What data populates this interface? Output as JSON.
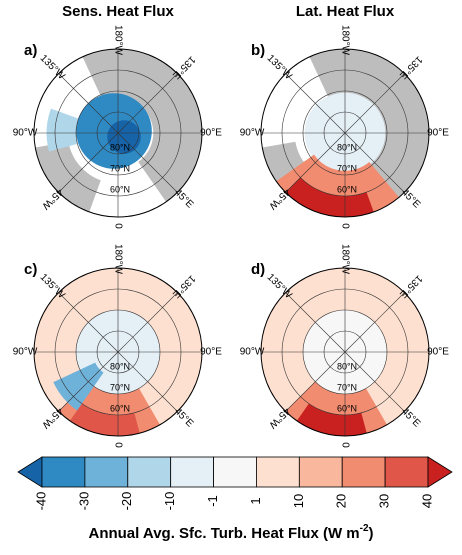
{
  "panels": [
    {
      "label": "a)",
      "title": "Sens. Heat Flux"
    },
    {
      "label": "b)",
      "title": "Lat. Heat Flux"
    },
    {
      "label": "c)"
    },
    {
      "label": "d)"
    }
  ],
  "lon_labels": [
    "180°W",
    "135°E",
    "90°E",
    "45°E",
    "0",
    "45°W",
    "90°W",
    "135°W"
  ],
  "lat_labels": [
    "60°N",
    "70°N",
    "80°N"
  ],
  "colorbar": {
    "ticks": [
      -40,
      -30,
      -20,
      -10,
      -1,
      1,
      10,
      20,
      30,
      40
    ],
    "colors": [
      "#1663a8",
      "#2f8ac4",
      "#6fb2d9",
      "#b0d6ea",
      "#e4eff6",
      "#f7f7f7",
      "#fde0d0",
      "#f9b79e",
      "#f28c70",
      "#e0574a",
      "#c8211f"
    ],
    "label": "Annual Avg. Sfc. Turb. Heat Flux (W m",
    "label_sup": "-2",
    "label_end": ")"
  }
}
